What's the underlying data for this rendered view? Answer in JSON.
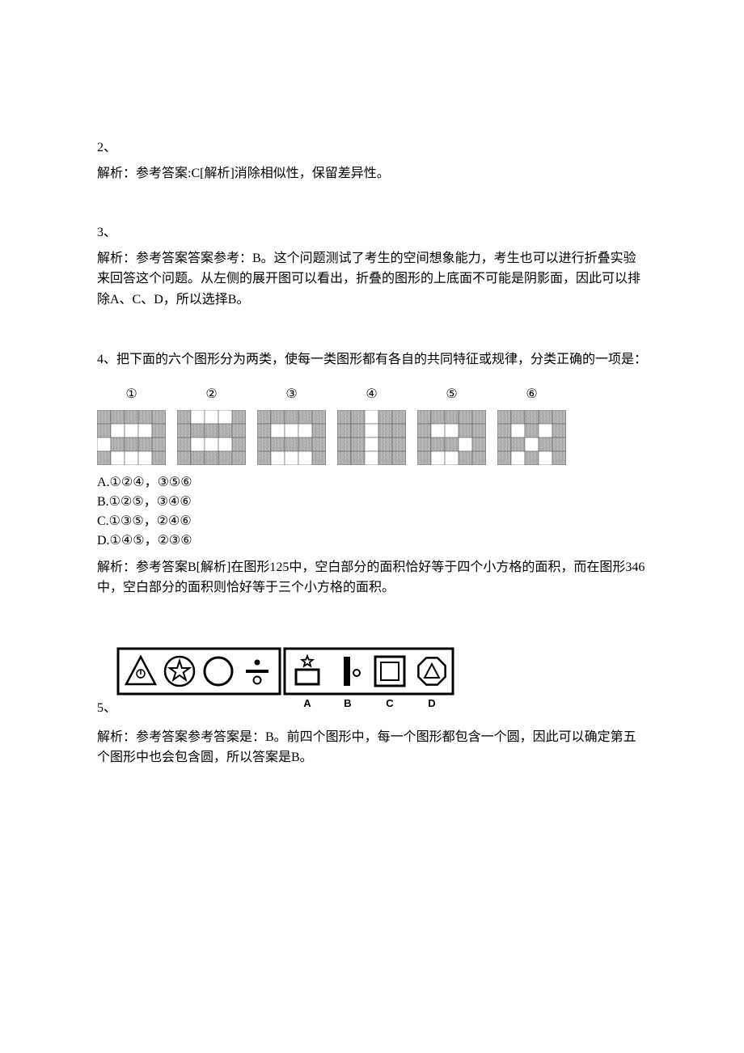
{
  "q2": {
    "number": "2、",
    "explanation": "解析：参考答案:C[解析]消除相似性，保留差异性。"
  },
  "q3": {
    "number": "3、",
    "explanation": "解析：参考答案答案参考：B。这个问题测试了考生的空间想象能力，考生也可以进行折叠实验来回答这个问题。从左侧的展开图可以看出，折叠的图形的上底面不可能是阴影面，因此可以排除A、C、D，所以选择B。"
  },
  "q4": {
    "number_and_stem": "4、把下面的六个图形分为两类，使每一类图形都有各自的共同特征或规律，分类正确的一项是：",
    "labels": [
      "①",
      "②",
      "③",
      "④",
      "⑤",
      "⑥"
    ],
    "grids": {
      "cols": 5,
      "rows": 4,
      "cell": 17,
      "hatched_fill": "#b8b8b8",
      "white_fill": "#ffffff",
      "border_color": "#606060",
      "border_width": 0.6,
      "patterns": [
        [
          [
            1,
            1
          ],
          [
            1,
            2
          ],
          [
            1,
            3
          ],
          [
            2,
            0
          ],
          [
            3,
            1
          ],
          [
            3,
            2
          ],
          [
            3,
            3
          ]
        ],
        [
          [
            0,
            1
          ],
          [
            0,
            2
          ],
          [
            0,
            3
          ],
          [
            2,
            1
          ],
          [
            2,
            2
          ],
          [
            2,
            3
          ]
        ],
        [
          [
            1,
            1
          ],
          [
            1,
            2
          ],
          [
            1,
            3
          ],
          [
            3,
            1
          ],
          [
            3,
            2
          ],
          [
            3,
            3
          ]
        ],
        [
          [
            0,
            2
          ],
          [
            1,
            2
          ],
          [
            2,
            2
          ],
          [
            3,
            2
          ]
        ],
        [
          [
            1,
            1
          ],
          [
            1,
            2
          ],
          [
            2,
            3
          ],
          [
            3,
            1
          ],
          [
            3,
            2
          ]
        ],
        [
          [
            1,
            1
          ],
          [
            1,
            3
          ],
          [
            2,
            2
          ],
          [
            3,
            1
          ],
          [
            3,
            3
          ]
        ]
      ]
    },
    "options": {
      "A": "A.①②④，③⑤⑥",
      "B": "B.①②⑤，③④⑥",
      "C": "C.①③⑤，②④⑥",
      "D": "D.①④⑤，②③⑥"
    },
    "explanation": "解析：参考答案B[解析]在图形125中，空白部分的面积恰好等于四个小方格的面积，而在图形346中，空白部分的面积则恰好等于三个小方格的面积。"
  },
  "q5": {
    "number": "5、",
    "image": {
      "frame_stroke": "#000000",
      "frame_stroke_width": 3,
      "bg": "#ffffff",
      "inner_stroke": "#000000",
      "answer_labels": [
        "A",
        "B",
        "C",
        "D"
      ]
    },
    "explanation": "解析：参考答案参考答案是：B。前四个图形中，每一个图形都包含一个圆，因此可以确定第五个图形中也会包含圆，所以答案是B。"
  }
}
